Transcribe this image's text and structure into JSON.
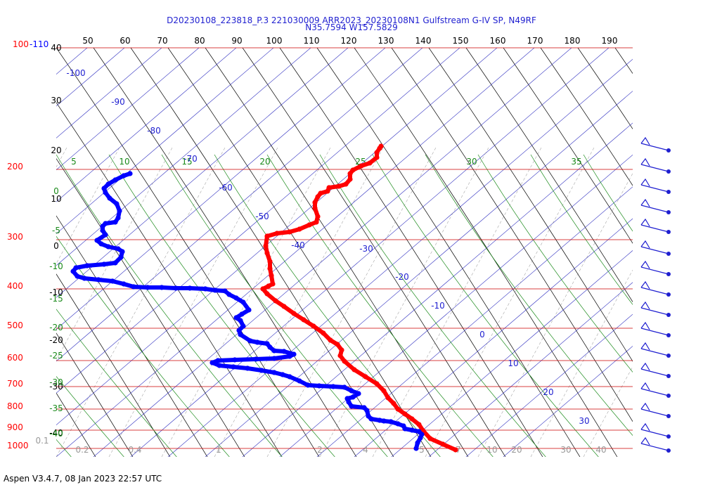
{
  "title_line1": "D20230108_223818_P.3 221030009 ARR2023_20230108N1 Gulfstream G-IV SP, N49RF",
  "title_line2": "N35.7594 W157.5829",
  "footer": "Aspen V3.4.7, 08 Jan 2023  22:57 UTC",
  "chart_data": {
    "type": "line",
    "pressure_labels": [
      "100-110",
      "200",
      "300",
      "400",
      "500",
      "600",
      "700",
      "800",
      "900",
      "1000"
    ],
    "top_axis_labels": [
      50,
      60,
      70,
      80,
      90,
      100,
      110,
      120,
      130,
      140,
      150,
      160,
      170,
      180,
      190
    ],
    "left_axis_labels": [
      40,
      30,
      20,
      10,
      0,
      -10,
      -20,
      -30,
      -40
    ],
    "green_labels": [
      5,
      10,
      15,
      20,
      25,
      30,
      35
    ],
    "green_left_labels": [
      0,
      -5,
      -10,
      -15,
      -20,
      -25,
      -30,
      -35,
      -40
    ],
    "blue_labels": [
      -100,
      -90,
      -80,
      -70,
      -60,
      -50,
      -40,
      -30,
      -20,
      -10,
      0,
      10,
      20,
      30
    ],
    "bottom_labels": [
      "0.1",
      "0.2",
      "0.4",
      "1",
      "2",
      "4",
      "5",
      "7",
      "10",
      "20",
      "30",
      "40"
    ],
    "colors": {
      "temperature": "#ff0000",
      "dewpoint": "#0000ff",
      "isobar": "#cc0000",
      "blue_lines": "#3030c0",
      "green_lines": "#1a8a1a",
      "black_lines": "#000000"
    },
    "series": [
      {
        "points": [
          [
            648,
            640
          ],
          [
            630,
            632
          ],
          [
            612,
            624
          ],
          [
            602,
            613
          ],
          [
            596,
            604
          ],
          [
            586,
            596
          ],
          [
            576,
            589
          ],
          [
            566,
            582
          ],
          [
            560,
            574
          ],
          [
            552,
            566
          ],
          [
            546,
            556
          ],
          [
            536,
            546
          ],
          [
            520,
            536
          ],
          [
            504,
            526
          ],
          [
            490,
            514
          ],
          [
            484,
            506
          ],
          [
            486,
            498
          ],
          [
            480,
            490
          ],
          [
            470,
            484
          ],
          [
            460,
            474
          ],
          [
            446,
            464
          ],
          [
            432,
            455
          ],
          [
            418,
            446
          ],
          [
            404,
            436
          ],
          [
            392,
            428
          ],
          [
            380,
            418
          ],
          [
            374,
            411
          ],
          [
            382,
            407
          ],
          [
            388,
            404
          ],
          [
            386,
            392
          ],
          [
            384,
            382
          ],
          [
            384,
            372
          ],
          [
            380,
            360
          ],
          [
            378,
            350
          ],
          [
            380,
            336
          ],
          [
            394,
            332
          ],
          [
            412,
            330
          ],
          [
            426,
            326
          ],
          [
            440,
            320
          ],
          [
            450,
            316
          ],
          [
            452,
            308
          ],
          [
            448,
            296
          ],
          [
            448,
            288
          ],
          [
            452,
            280
          ],
          [
            456,
            275
          ],
          [
            466,
            272
          ],
          [
            468,
            267
          ],
          [
            482,
            265
          ],
          [
            492,
            262
          ],
          [
            498,
            255
          ],
          [
            498,
            247
          ],
          [
            502,
            242
          ],
          [
            514,
            236
          ],
          [
            526,
            232
          ],
          [
            536,
            224
          ],
          [
            536,
            217
          ],
          [
            540,
            211
          ],
          [
            542,
            208
          ]
        ]
      },
      {
        "points": [
          [
            592,
            638
          ],
          [
            594,
            630
          ],
          [
            598,
            623
          ],
          [
            600,
            618
          ],
          [
            596,
            614
          ],
          [
            586,
            612
          ],
          [
            576,
            610
          ],
          [
            574,
            606
          ],
          [
            566,
            603
          ],
          [
            556,
            600
          ],
          [
            546,
            599
          ],
          [
            540,
            598
          ],
          [
            528,
            596
          ],
          [
            524,
            592
          ],
          [
            522,
            584
          ],
          [
            518,
            580
          ],
          [
            500,
            578
          ],
          [
            496,
            572
          ],
          [
            494,
            567
          ],
          [
            502,
            565
          ],
          [
            510,
            560
          ],
          [
            500,
            556
          ],
          [
            490,
            551
          ],
          [
            474,
            550
          ],
          [
            454,
            549
          ],
          [
            438,
            548
          ],
          [
            426,
            542
          ],
          [
            412,
            536
          ],
          [
            402,
            533
          ],
          [
            390,
            530
          ],
          [
            372,
            527
          ],
          [
            352,
            524
          ],
          [
            332,
            522
          ],
          [
            312,
            520
          ],
          [
            302,
            516
          ],
          [
            310,
            513
          ],
          [
            334,
            512
          ],
          [
            364,
            511
          ],
          [
            390,
            510
          ],
          [
            412,
            507
          ],
          [
            418,
            504
          ],
          [
            404,
            500
          ],
          [
            390,
            499
          ],
          [
            384,
            494
          ],
          [
            380,
            489
          ],
          [
            366,
            487
          ],
          [
            356,
            485
          ],
          [
            342,
            476
          ],
          [
            340,
            470
          ],
          [
            346,
            464
          ],
          [
            342,
            456
          ],
          [
            336,
            452
          ],
          [
            344,
            447
          ],
          [
            354,
            441
          ],
          [
            346,
            430
          ],
          [
            336,
            424
          ],
          [
            326,
            419
          ],
          [
            320,
            414
          ],
          [
            306,
            413
          ],
          [
            292,
            411
          ],
          [
            270,
            410
          ],
          [
            250,
            410
          ],
          [
            230,
            409
          ],
          [
            210,
            409
          ],
          [
            190,
            408
          ],
          [
            176,
            404
          ],
          [
            160,
            400
          ],
          [
            140,
            398
          ],
          [
            120,
            396
          ],
          [
            110,
            393
          ],
          [
            104,
            386
          ],
          [
            108,
            381
          ],
          [
            124,
            378
          ],
          [
            148,
            376
          ],
          [
            164,
            374
          ],
          [
            172,
            366
          ],
          [
            174,
            358
          ],
          [
            168,
            354
          ],
          [
            154,
            351
          ],
          [
            144,
            347
          ],
          [
            138,
            342
          ],
          [
            150,
            334
          ],
          [
            146,
            328
          ],
          [
            146,
            322
          ],
          [
            150,
            318
          ],
          [
            164,
            316
          ],
          [
            168,
            310
          ],
          [
            170,
            300
          ],
          [
            166,
            290
          ],
          [
            156,
            282
          ],
          [
            150,
            274
          ],
          [
            148,
            268
          ],
          [
            154,
            262
          ],
          [
            164,
            256
          ],
          [
            176,
            250
          ],
          [
            185,
            247
          ]
        ]
      }
    ]
  }
}
